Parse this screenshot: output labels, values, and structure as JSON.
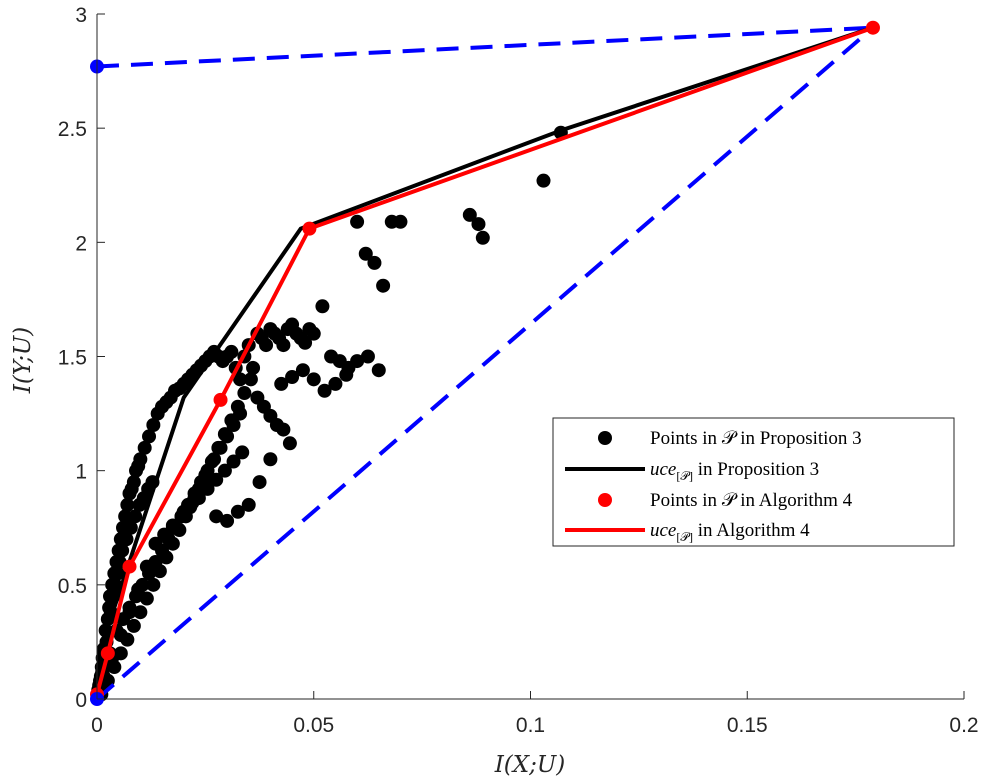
{
  "chart_data": {
    "type": "scatter",
    "title": "",
    "xlabel": "I(X;U)",
    "ylabel": "I(Y;U)",
    "xlim": [
      0,
      0.2
    ],
    "ylim": [
      0,
      3
    ],
    "xticks": [
      "0",
      "0.05",
      "0.1",
      "0.15",
      "0.2"
    ],
    "yticks": [
      "0",
      "0.5",
      "1",
      "1.5",
      "2",
      "2.5",
      "3"
    ],
    "grid": false,
    "legend_position": "right",
    "legend": [
      {
        "kind": "marker",
        "color": "#000000",
        "text_a": "Points in ",
        "symbol": "𝒫",
        "text_b": " in Proposition 3"
      },
      {
        "kind": "line",
        "color": "#000000",
        "text_a": "uce",
        "symbol": "[𝒫]",
        "text_b": " in Proposition 3"
      },
      {
        "kind": "marker",
        "color": "#ff0000",
        "text_a": "Points in ",
        "symbol": "𝒫",
        "text_b": " in Algorithm 4"
      },
      {
        "kind": "line",
        "color": "#ff0000",
        "text_a": "uce",
        "symbol": "[𝒫]",
        "text_b": " in Algorithm 4"
      }
    ],
    "series": [
      {
        "kind": "scatter",
        "color": "#000000",
        "x": [
          0.0008,
          0.0012,
          0.0015,
          0.002,
          0.0018,
          0.0025,
          0.003,
          0.0022,
          0.0028,
          0.0035,
          0.004,
          0.0032,
          0.0045,
          0.005,
          0.0038,
          0.0042,
          0.0055,
          0.006,
          0.0048,
          0.0065,
          0.007,
          0.0052,
          0.0075,
          0.008,
          0.0058,
          0.0085,
          0.009,
          0.0068,
          0.0095,
          0.01,
          0.0078,
          0.011,
          0.012,
          0.0088,
          0.013,
          0.014,
          0.0098,
          0.015,
          0.016,
          0.0108,
          0.017,
          0.018,
          0.0118,
          0.019,
          0.02,
          0.0128,
          0.021,
          0.022,
          0.023,
          0.024,
          0.025,
          0.026,
          0.027,
          0.028,
          0.029,
          0.03,
          0.031,
          0.032,
          0.033,
          0.034,
          0.035,
          0.036,
          0.037,
          0.038,
          0.039,
          0.04,
          0.041,
          0.042,
          0.043,
          0.044,
          0.045,
          0.046,
          0.047,
          0.048,
          0.049,
          0.05,
          0.052,
          0.054,
          0.056,
          0.058,
          0.06,
          0.062,
          0.064,
          0.066,
          0.068,
          0.07,
          0.086,
          0.088,
          0.089,
          0.103,
          0.107,
          0.0015,
          0.003,
          0.0045,
          0.006,
          0.0075,
          0.009,
          0.0105,
          0.012,
          0.0135,
          0.015,
          0.0165,
          0.018,
          0.0195,
          0.021,
          0.0225,
          0.024,
          0.0255,
          0.027,
          0.0285,
          0.03,
          0.0315,
          0.033,
          0.0035,
          0.0055,
          0.0075,
          0.0095,
          0.0115,
          0.0135,
          0.0155,
          0.0175,
          0.0195,
          0.0215,
          0.0235,
          0.0255,
          0.0275,
          0.0295,
          0.0315,
          0.0335,
          0.001,
          0.0025,
          0.004,
          0.0055,
          0.007,
          0.0085,
          0.01,
          0.0115,
          0.013,
          0.0145,
          0.016,
          0.0175,
          0.019,
          0.0205,
          0.022,
          0.0235,
          0.025,
          0.0265,
          0.028,
          0.0295,
          0.031,
          0.0325,
          0.034,
          0.0355,
          0.037,
          0.0385,
          0.04,
          0.0415,
          0.043,
          0.0445,
          0.0175,
          0.02,
          0.0225,
          0.025,
          0.0275,
          0.03,
          0.0325,
          0.035,
          0.0375,
          0.04,
          0.0425,
          0.045,
          0.0475,
          0.05,
          0.0525,
          0.055,
          0.0575,
          0.06,
          0.0625,
          0.065,
          0.0002,
          0.0004,
          0.0006,
          0.0003,
          0.0005,
          0.0007,
          0.0009,
          0.0011,
          0.0013,
          0.0016
        ],
        "y": [
          0.05,
          0.12,
          0.2,
          0.3,
          0.15,
          0.35,
          0.45,
          0.25,
          0.4,
          0.5,
          0.55,
          0.38,
          0.6,
          0.65,
          0.45,
          0.5,
          0.7,
          0.75,
          0.55,
          0.8,
          0.85,
          0.6,
          0.9,
          0.92,
          0.65,
          0.95,
          1.0,
          0.7,
          1.02,
          1.05,
          0.75,
          1.1,
          1.15,
          0.8,
          1.2,
          1.25,
          0.85,
          1.28,
          1.3,
          0.88,
          1.32,
          1.35,
          0.92,
          1.36,
          1.38,
          0.95,
          1.4,
          1.42,
          1.44,
          1.46,
          1.48,
          1.5,
          1.52,
          1.5,
          1.48,
          1.5,
          1.52,
          1.45,
          1.4,
          1.5,
          1.55,
          1.45,
          1.6,
          1.58,
          1.55,
          1.62,
          1.6,
          1.58,
          1.55,
          1.62,
          1.64,
          1.6,
          1.58,
          1.56,
          1.62,
          1.6,
          1.72,
          1.5,
          1.48,
          1.45,
          2.09,
          1.95,
          1.91,
          1.81,
          2.09,
          2.09,
          2.12,
          2.08,
          2.02,
          2.27,
          2.48,
          0.1,
          0.2,
          0.3,
          0.35,
          0.4,
          0.45,
          0.5,
          0.55,
          0.6,
          0.65,
          0.7,
          0.75,
          0.8,
          0.85,
          0.9,
          0.95,
          1.0,
          1.05,
          1.1,
          1.15,
          1.2,
          1.25,
          0.18,
          0.28,
          0.38,
          0.48,
          0.58,
          0.68,
          0.72,
          0.76,
          0.8,
          0.84,
          0.88,
          0.92,
          0.96,
          1.0,
          1.04,
          1.08,
          0.02,
          0.08,
          0.14,
          0.2,
          0.26,
          0.32,
          0.38,
          0.44,
          0.5,
          0.56,
          0.62,
          0.68,
          0.74,
          0.8,
          0.86,
          0.92,
          0.98,
          1.04,
          1.1,
          1.16,
          1.22,
          1.28,
          1.34,
          1.4,
          1.32,
          1.28,
          1.24,
          1.2,
          1.18,
          1.12,
          0.75,
          0.82,
          0.88,
          0.95,
          0.8,
          0.78,
          0.82,
          0.85,
          0.95,
          1.05,
          1.38,
          1.41,
          1.44,
          1.4,
          1.35,
          1.38,
          1.42,
          1.48,
          1.5,
          1.44,
          0.01,
          0.02,
          0.03,
          0.04,
          0.06,
          0.08,
          0.1,
          0.14,
          0.18,
          0.22
        ]
      },
      {
        "kind": "line",
        "name": "uce Proposition 3",
        "color": "#000000",
        "x": [
          0,
          0.0005,
          0.02,
          0.047,
          0.107,
          0.179
        ],
        "y": [
          0,
          0.2,
          1.32,
          2.06,
          2.49,
          2.94
        ]
      },
      {
        "kind": "line-markers",
        "name": "uce Algorithm 4",
        "color": "#ff0000",
        "x": [
          0,
          0.0025,
          0.0075,
          0.0285,
          0.049,
          0.179
        ],
        "y": [
          0.02,
          0.2,
          0.58,
          1.31,
          2.06,
          2.94
        ]
      },
      {
        "kind": "dashed-line",
        "name": "bound upper",
        "color": "#0000ff",
        "x": [
          0,
          0.179
        ],
        "y": [
          2.77,
          2.94
        ]
      },
      {
        "kind": "dashed-line",
        "name": "bound lower",
        "color": "#0000ff",
        "x": [
          0,
          0.179
        ],
        "y": [
          0,
          2.94
        ]
      },
      {
        "kind": "markers",
        "name": "blue points",
        "color": "#0000ff",
        "x": [
          0,
          0
        ],
        "y": [
          2.77,
          0
        ]
      }
    ]
  }
}
